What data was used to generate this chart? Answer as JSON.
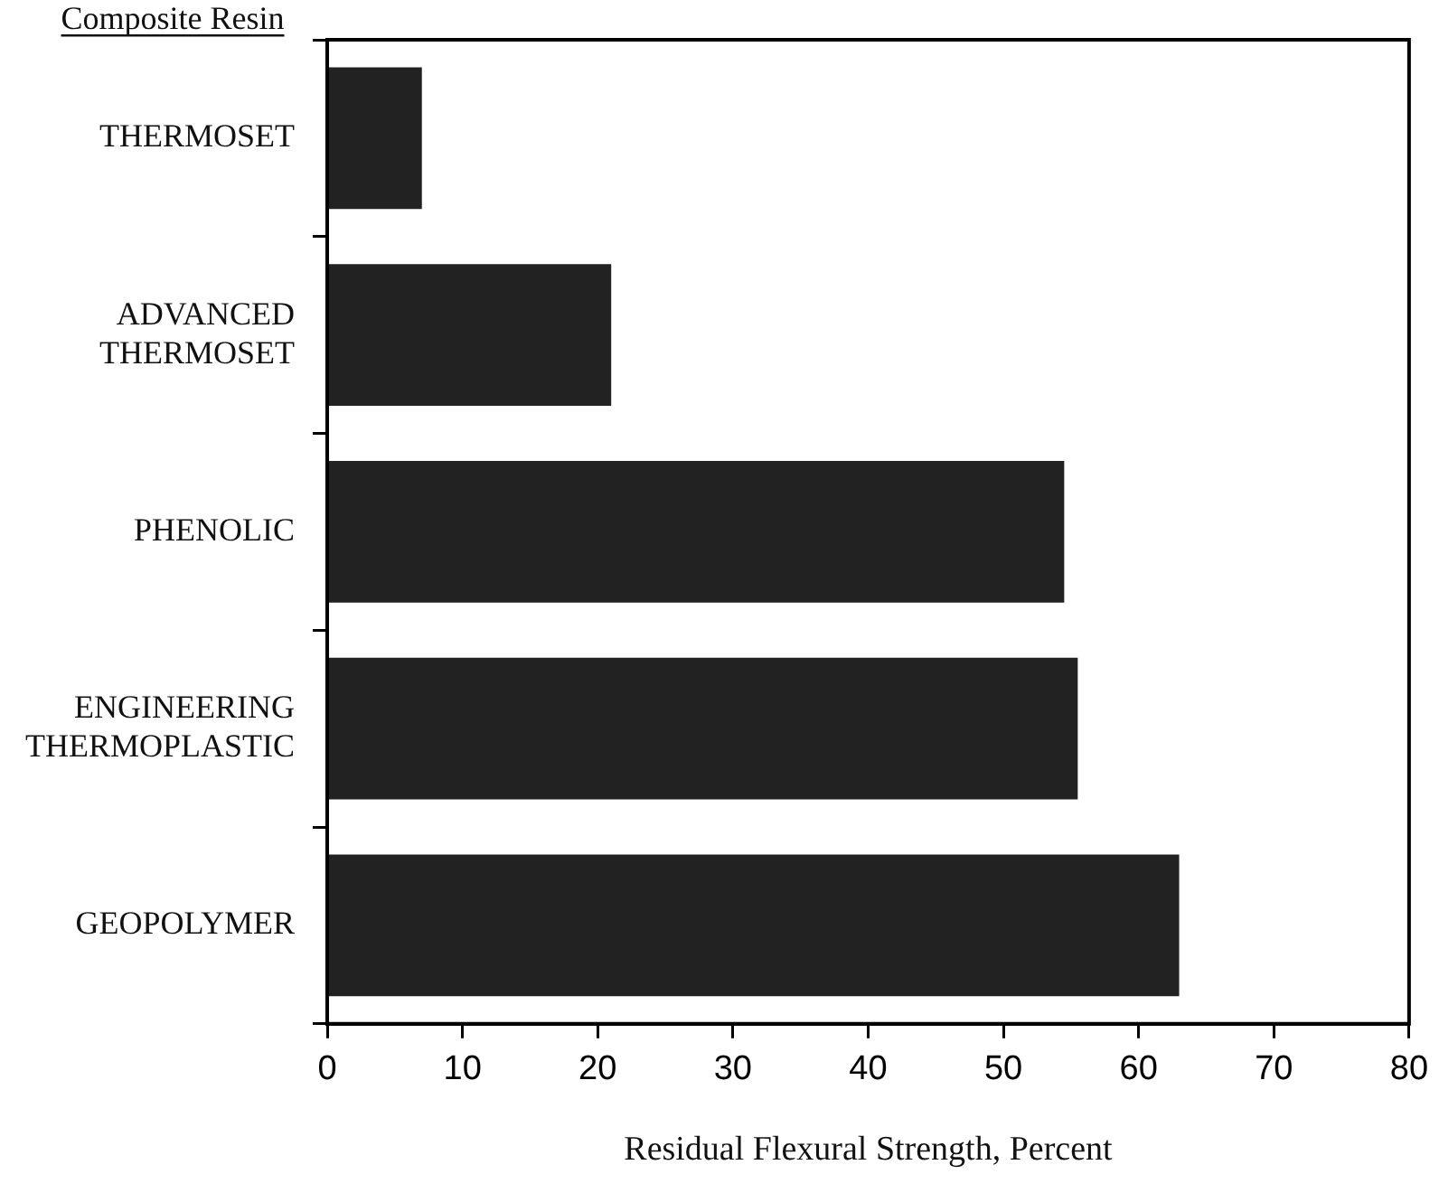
{
  "chart_data": {
    "type": "bar",
    "orientation": "horizontal",
    "ylabel": "Composite Resin",
    "xlabel": "Residual Flexural Strength, Percent",
    "categories": [
      "THERMOSET",
      "ADVANCED THERMOSET",
      "PHENOLIC",
      "ENGINEERING THERMOPLASTIC",
      "GEOPOLYMER"
    ],
    "values": [
      7,
      21,
      54.5,
      55.5,
      63
    ],
    "color": "#222222",
    "xlim": [
      0,
      80
    ],
    "xticks": [
      0,
      10,
      20,
      30,
      40,
      50,
      60,
      70,
      80
    ],
    "grid": false,
    "legend": false
  }
}
